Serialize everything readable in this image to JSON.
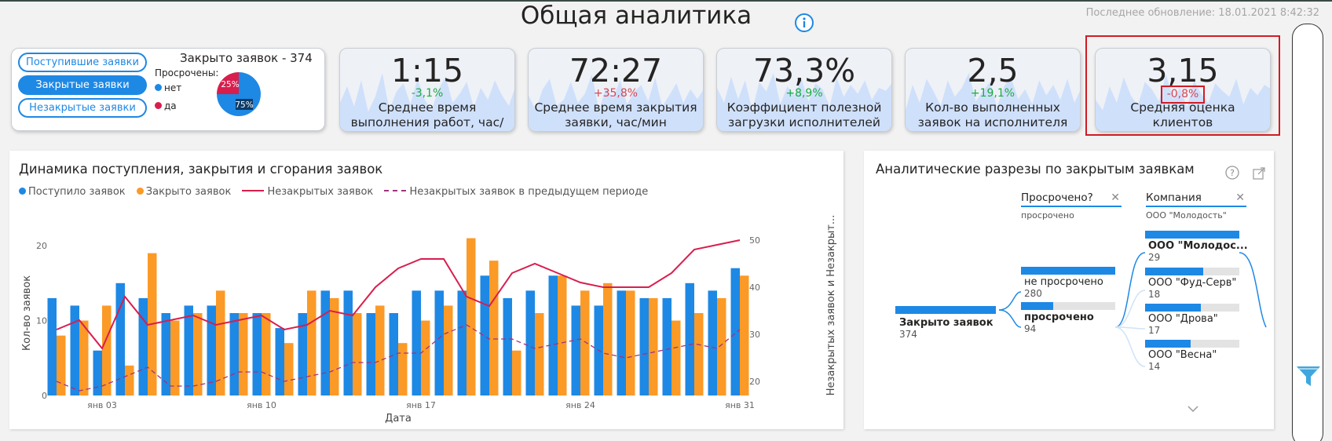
{
  "header": {
    "title": "Общая аналитика",
    "last_update": "Последнее обновление: 18.01.2021 8:42:32"
  },
  "filter_card": {
    "buttons": [
      {
        "label": "Поступившие заявки",
        "active": false
      },
      {
        "label": "Закрытые заявки",
        "active": true
      },
      {
        "label": "Незакрытые заявки",
        "active": false
      }
    ],
    "closed_title": "Закрыто заявок - 374",
    "overdue_title": "Просрочены:",
    "legend": [
      {
        "label": "нет",
        "color": "#1e88e5"
      },
      {
        "label": "да",
        "color": "#d81e4d"
      }
    ],
    "pie": [
      {
        "label": "25%",
        "value": 25,
        "color": "#d81e4d"
      },
      {
        "label": "75%",
        "value": 75,
        "color": "#1e88e5"
      }
    ]
  },
  "kpis": [
    {
      "value": "1:15",
      "delta": "-3,1%",
      "delta_type": "pos",
      "label": "Среднее время выполнения работ, час/мин",
      "spark": [
        40,
        62,
        35,
        70,
        28,
        48,
        80,
        30,
        55,
        66,
        38,
        72,
        45,
        30,
        58,
        75,
        40,
        52,
        68,
        34,
        60,
        44,
        70,
        50,
        36,
        64
      ]
    },
    {
      "value": "72:27",
      "delta": "+35,8%",
      "delta_type": "neg",
      "label": "Среднее время закрытия заявки, час/мин",
      "spark": [
        50,
        30,
        58,
        72,
        36,
        44,
        68,
        40,
        52,
        78,
        30,
        60,
        46,
        70,
        38,
        55,
        64,
        42,
        74,
        35,
        50,
        66,
        40,
        58,
        45,
        60
      ]
    },
    {
      "value": "73,3%",
      "delta": "+8,9%",
      "delta_type": "pos",
      "label": "Коэффициент полезной загрузки исполнителей",
      "spark": [
        60,
        40,
        75,
        45,
        70,
        30,
        68,
        55,
        80,
        38,
        62,
        50,
        72,
        42,
        66,
        58,
        35,
        74,
        48,
        64,
        52,
        70,
        44,
        60,
        56,
        68
      ]
    },
    {
      "value": "2,5",
      "delta": "+19,1%",
      "delta_type": "pos",
      "label": "Кол-во выполненных заявок на исполнителя",
      "spark": [
        30,
        64,
        40,
        72,
        55,
        36,
        70,
        48,
        60,
        80,
        42,
        56,
        68,
        34,
        62,
        74,
        45,
        58,
        38,
        70,
        50,
        64,
        44,
        72,
        40,
        60
      ]
    },
    {
      "value": "3,15",
      "delta": "-0,8%",
      "delta_type": "neg",
      "label": "Средняя оценка клиентов",
      "spark": [
        44,
        30,
        62,
        40,
        74,
        50,
        36,
        68,
        58,
        42,
        78,
        46,
        60,
        34,
        70,
        52,
        40,
        66,
        56,
        48,
        72,
        38,
        60,
        50,
        64,
        58
      ]
    }
  ],
  "left_chart": {
    "title": "Динамика поступления, закрытия и сгорания заявок",
    "colors": {
      "incoming": "#1e88e5",
      "closed": "#fb9a27",
      "open": "#d81e4d",
      "open_prev": "#a0337e"
    }
  },
  "chart_data": {
    "type": "bar",
    "x": [
      "янв 01",
      "янв 02",
      "янв 03",
      "янв 04",
      "янв 05",
      "янв 06",
      "янв 07",
      "янв 08",
      "янв 09",
      "янв 10",
      "янв 11",
      "янв 12",
      "янв 13",
      "янв 14",
      "янв 15",
      "янв 16",
      "янв 17",
      "янв 18",
      "янв 19",
      "янв 20",
      "янв 21",
      "янв 22",
      "янв 23",
      "янв 24",
      "янв 25",
      "янв 26",
      "янв 27",
      "янв 28",
      "янв 29",
      "янв 30",
      "янв 31"
    ],
    "tick_labels": [
      "янв 03",
      "янв 10",
      "янв 17",
      "янв 24",
      "янв 31"
    ],
    "xlabel": "Дата",
    "ylabel": "Кол-во заявок",
    "y2label": "Незакрытых заявок и Незакрыт...",
    "ylim": [
      0,
      22
    ],
    "y2lim": [
      17,
      52
    ],
    "yticks": [
      0,
      10,
      20
    ],
    "y2ticks": [
      20,
      30,
      40,
      50
    ],
    "series": [
      {
        "name": "Поступило заявок",
        "type": "bar",
        "axis": "left",
        "values": [
          13,
          12,
          6,
          15,
          13,
          11,
          12,
          12,
          11,
          11,
          9,
          11,
          14,
          14,
          11,
          11,
          14,
          14,
          14,
          16,
          13,
          14,
          16,
          12,
          12,
          14,
          13,
          13,
          15,
          14,
          17
        ]
      },
      {
        "name": "Закрыто заявок",
        "type": "bar",
        "axis": "left",
        "values": [
          8,
          10,
          12,
          4,
          19,
          10,
          11,
          14,
          11,
          11,
          7,
          14,
          13,
          11,
          12,
          7,
          10,
          12,
          21,
          18,
          6,
          11,
          16,
          14,
          15,
          14,
          13,
          10,
          11,
          13,
          16
        ]
      },
      {
        "name": "Незакрытых заявок",
        "type": "line",
        "axis": "right",
        "values": [
          31,
          33,
          27,
          38,
          32,
          33,
          34,
          32,
          33,
          34,
          31,
          32,
          35,
          34,
          40,
          44,
          46,
          46,
          38,
          36,
          43,
          45,
          43,
          41,
          40,
          40,
          40,
          43,
          48,
          49,
          50
        ]
      },
      {
        "name": "Незакрытых заявок в предыдущем периоде",
        "type": "line-dashed",
        "axis": "right",
        "values": [
          20,
          18,
          19,
          21,
          23,
          19,
          19,
          20,
          22,
          22,
          20,
          21,
          22,
          24,
          24,
          26,
          26,
          30,
          32,
          29,
          29,
          27,
          28,
          29,
          26,
          25,
          26,
          27,
          28,
          27,
          31
        ]
      }
    ]
  },
  "right_panel": {
    "title": "Аналитические разрезы по закрытым заявкам",
    "col1": {
      "header": "Просрочено?",
      "selected": "просрочено"
    },
    "col2": {
      "header": "Компания",
      "selected": "ООО \"Молодость\""
    },
    "root": {
      "label": "Закрыто заявок",
      "value": "374"
    },
    "level1": [
      {
        "label": "не просрочено",
        "value": "280",
        "fill": 1.0,
        "bold": false
      },
      {
        "label": "просрочено",
        "value": "94",
        "fill": 0.34,
        "bold": true
      }
    ],
    "level2": [
      {
        "label": "ООО \"Молодос...",
        "value": "29",
        "fill": 1.0,
        "bold": true
      },
      {
        "label": "ООО \"Фуд-Серв\"",
        "value": "18",
        "fill": 0.62,
        "bold": false
      },
      {
        "label": "ООО \"Дрова\"",
        "value": "17",
        "fill": 0.59,
        "bold": false
      },
      {
        "label": "ООО \"Весна\"",
        "value": "14",
        "fill": 0.48,
        "bold": false
      }
    ]
  }
}
